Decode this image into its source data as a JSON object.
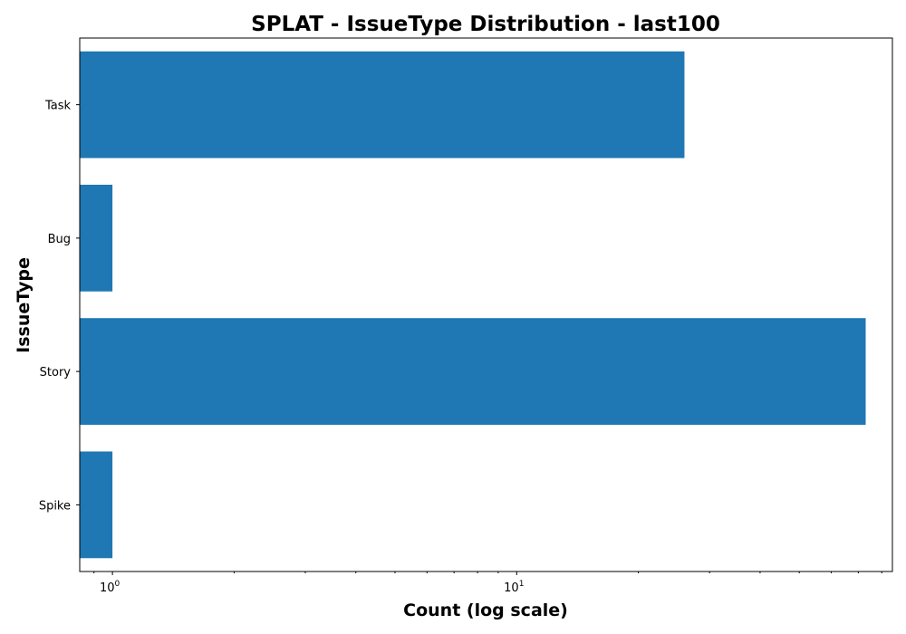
{
  "chart_data": {
    "type": "bar",
    "orientation": "horizontal",
    "title": "SPLAT - IssueType Distribution - last100",
    "xlabel": "Count (log scale)",
    "ylabel": "IssueType",
    "x_scale": "log",
    "xlim": [
      0.83,
      85
    ],
    "categories": [
      "Task",
      "Bug",
      "Story",
      "Spike"
    ],
    "values": [
      26,
      1,
      73,
      1
    ],
    "x_major_ticks": [
      {
        "value": 1,
        "base": "10",
        "exp": "0"
      },
      {
        "value": 10,
        "base": "10",
        "exp": "1"
      }
    ],
    "bar_color": "#1f77b4",
    "grid": false,
    "legend": "none"
  }
}
